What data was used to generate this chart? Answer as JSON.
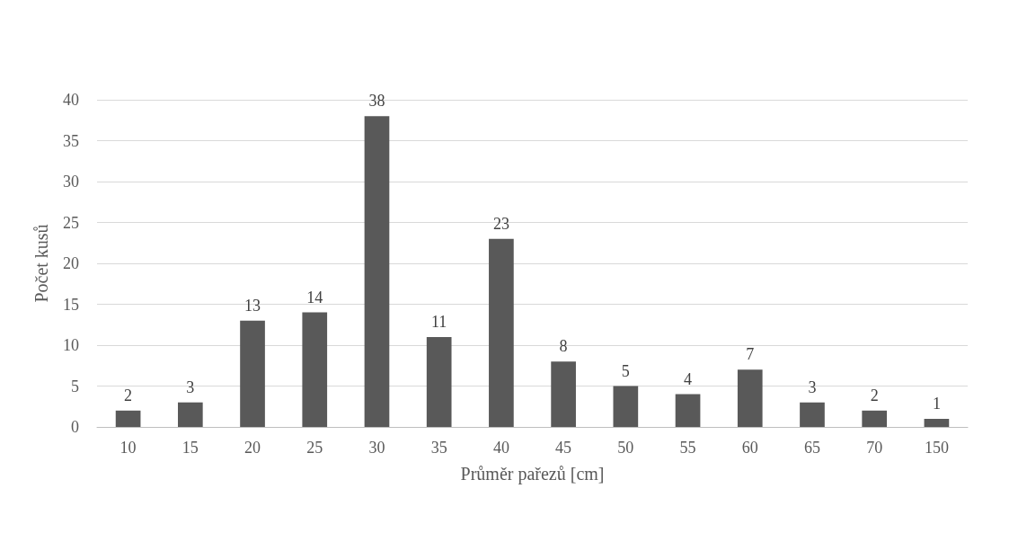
{
  "chart_data": {
    "type": "bar",
    "xlabel": "Průměr pařezů [cm]",
    "ylabel": "Počet kusů",
    "categories": [
      "10",
      "15",
      "20",
      "25",
      "30",
      "35",
      "40",
      "45",
      "50",
      "55",
      "60",
      "65",
      "70",
      "150"
    ],
    "values": [
      2,
      3,
      13,
      14,
      38,
      11,
      23,
      8,
      5,
      4,
      7,
      3,
      2,
      1
    ],
    "color": "#595959",
    "ylim": [
      0,
      40
    ],
    "yticks": [
      0,
      5,
      10,
      15,
      20,
      25,
      30,
      35,
      40
    ],
    "grid": "y",
    "data_labels": true
  }
}
